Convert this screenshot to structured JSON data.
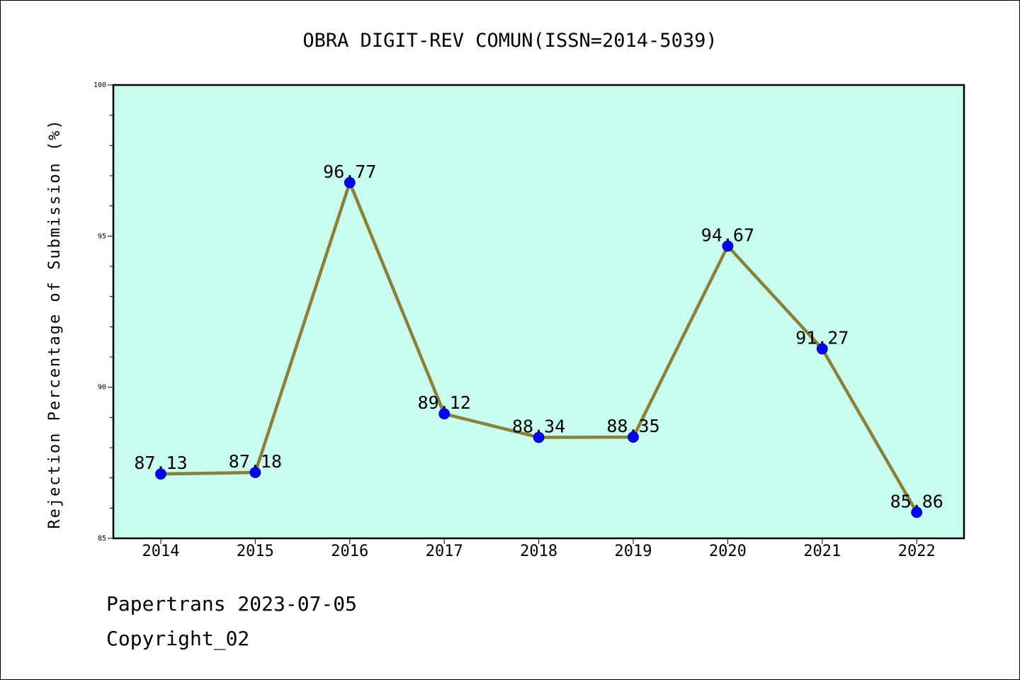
{
  "chart_data": {
    "type": "line",
    "title": "OBRA DIGIT-REV COMUN(ISSN=2014-5039)",
    "ylabel": "Rejection Percentage of Submission (%)",
    "xlabel": "",
    "categories": [
      "2014",
      "2015",
      "2016",
      "2017",
      "2018",
      "2019",
      "2020",
      "2021",
      "2022"
    ],
    "series": [
      {
        "values": [
          87.13,
          87.18,
          96.77,
          89.12,
          88.34,
          88.35,
          94.67,
          91.27,
          85.86
        ]
      }
    ],
    "data_labels": [
      "87.13",
      "87.18",
      "96.77",
      "89.12",
      "88.34",
      "88.35",
      "94.67",
      "91.27",
      "85.86"
    ],
    "ylim": [
      85,
      100
    ],
    "yticks": [
      "85",
      "90",
      "95",
      "100"
    ],
    "grid": false,
    "colors": {
      "plot_background": "#c8fcee",
      "line": "#8b8038",
      "marker": "#0000ff"
    }
  },
  "footer": {
    "line1": "Papertrans 2023-07-05",
    "line2": "Copyright_02"
  }
}
